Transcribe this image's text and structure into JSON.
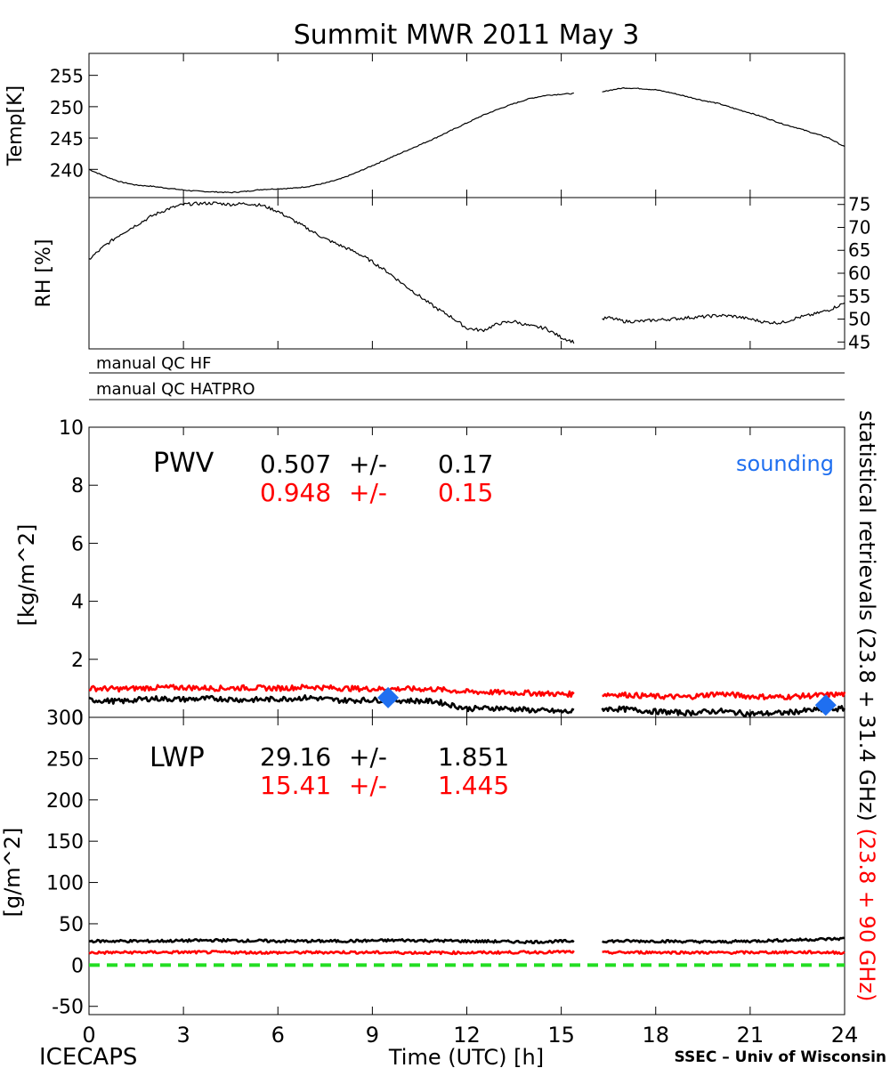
{
  "figure": {
    "title": "Summit MWR 2011 May  3",
    "footer_left": "ICECAPS",
    "footer_right": "SSEC – Univ of Wisconsin",
    "x_label": "Time (UTC) [h]",
    "right_label_black": "statistical retrievals (23.8 + 31.4 GHz)",
    "right_label_red": "(23.8 + 90 GHz)",
    "colors": {
      "black_series": "#000000",
      "red_series": "#ff0000",
      "sounding": "#1f6ff0",
      "zero_line": "#22dd22"
    }
  },
  "chart_data": [
    {
      "type": "line",
      "panel": "temperature",
      "ylabel": "Temp[K]",
      "xlim": [
        0,
        24
      ],
      "ylim": [
        235.5,
        258.5
      ],
      "yticks": [
        240,
        245,
        250,
        255
      ],
      "axis_side": "left",
      "gap_hours": [
        15.4,
        16.3
      ],
      "series": [
        {
          "color": "black",
          "x": [
            0,
            0.5,
            1,
            1.5,
            2,
            2.5,
            3,
            3.5,
            4,
            4.5,
            5,
            5.5,
            6,
            6.5,
            7,
            7.5,
            8,
            8.5,
            9,
            9.5,
            10,
            10.5,
            11,
            11.5,
            12,
            12.5,
            13,
            13.5,
            14,
            14.5,
            15,
            15.4,
            16.3,
            16.5,
            17,
            17.5,
            18,
            18.5,
            19,
            19.5,
            20,
            20.5,
            21,
            21.5,
            22,
            22.5,
            23,
            23.5,
            24
          ],
          "y": [
            240.0,
            238.9,
            238.0,
            237.5,
            237.3,
            237.0,
            236.7,
            236.5,
            236.4,
            236.3,
            236.5,
            236.8,
            236.9,
            237.0,
            237.3,
            237.8,
            238.5,
            239.5,
            240.6,
            241.7,
            242.8,
            243.9,
            245.0,
            246.2,
            247.4,
            248.6,
            249.6,
            250.5,
            251.3,
            251.8,
            252.0,
            252.1,
            252.3,
            252.6,
            253.0,
            252.9,
            252.7,
            252.2,
            251.6,
            251.0,
            250.5,
            249.7,
            249.0,
            248.2,
            247.3,
            246.6,
            245.8,
            245.0,
            243.6
          ]
        }
      ]
    },
    {
      "type": "line",
      "panel": "relative_humidity",
      "ylabel": "RH [%]",
      "xlim": [
        0,
        24
      ],
      "ylim": [
        43.5,
        76.5
      ],
      "yticks": [
        45,
        50,
        55,
        60,
        65,
        70,
        75
      ],
      "axis_side": "right",
      "gap_hours": [
        15.4,
        16.3
      ],
      "series": [
        {
          "color": "black",
          "x": [
            0,
            0.5,
            1,
            1.5,
            2,
            2.5,
            3,
            3.5,
            4,
            4.5,
            5,
            5.5,
            6,
            6.5,
            7,
            7.5,
            8,
            8.5,
            9,
            9.5,
            10,
            10.5,
            11,
            11.5,
            12,
            12.5,
            13,
            13.5,
            14,
            14.5,
            15,
            15.4,
            16.3,
            16.5,
            17,
            17.5,
            18,
            18.5,
            19,
            19.5,
            20,
            20.5,
            21,
            21.5,
            22,
            22.5,
            23,
            23.5,
            24
          ],
          "y": [
            63,
            66,
            68.5,
            70.5,
            72.5,
            74,
            75,
            75.2,
            75.3,
            75,
            75.2,
            74.8,
            73.5,
            71.5,
            69.5,
            67.5,
            66,
            64.5,
            62.5,
            60.2,
            57.5,
            55,
            52.5,
            50.5,
            48,
            47.5,
            49,
            49.5,
            48.5,
            48,
            46,
            45,
            50,
            50.3,
            49.5,
            49.5,
            49.8,
            50,
            50.3,
            50.5,
            50.8,
            50.6,
            50,
            49.3,
            49.2,
            50.3,
            51,
            52,
            53.5
          ]
        }
      ]
    },
    {
      "type": "table",
      "panel": "manual_qc",
      "rows": [
        "manual QC HF",
        "manual QC HATPRO"
      ]
    },
    {
      "type": "line",
      "panel": "PWV",
      "ylabel": "[kg/m^2]",
      "xlim": [
        0,
        24
      ],
      "ylim": [
        0,
        10
      ],
      "yticks": [
        0,
        2,
        4,
        6,
        8,
        10
      ],
      "axis_side": "left",
      "gap_hours": [
        15.4,
        16.3
      ],
      "annotation": "PWV",
      "stats": [
        {
          "color": "black",
          "mean": "0.507",
          "pm": "+/-",
          "std": "0.17"
        },
        {
          "color": "red",
          "mean": "0.948",
          "pm": "+/-",
          "std": "0.15"
        }
      ],
      "legend": [
        "sounding"
      ],
      "series": [
        {
          "color": "red",
          "x": [
            0,
            1,
            2,
            3,
            4,
            5,
            6,
            7,
            8,
            9,
            10,
            11,
            12,
            13,
            14,
            15,
            15.4,
            16.3,
            17,
            18,
            19,
            20,
            21,
            22,
            23,
            24
          ],
          "y": [
            1.0,
            0.98,
            1.02,
            1.03,
            1.0,
            1.02,
            1.0,
            1.05,
            1.0,
            0.98,
            0.98,
            0.97,
            0.88,
            0.86,
            0.84,
            0.8,
            0.8,
            0.8,
            0.78,
            0.72,
            0.7,
            0.82,
            0.72,
            0.7,
            0.75,
            0.8
          ]
        },
        {
          "color": "black",
          "x": [
            0,
            1,
            2,
            3,
            4,
            5,
            6,
            7,
            8,
            9,
            10,
            11,
            12,
            13,
            14,
            15,
            15.4,
            16.3,
            17,
            18,
            19,
            20,
            21,
            22,
            23,
            24
          ],
          "y": [
            0.6,
            0.55,
            0.65,
            0.62,
            0.65,
            0.6,
            0.63,
            0.68,
            0.58,
            0.6,
            0.58,
            0.55,
            0.3,
            0.32,
            0.25,
            0.2,
            0.2,
            0.3,
            0.28,
            0.2,
            0.15,
            0.22,
            0.12,
            0.15,
            0.25,
            0.3
          ]
        },
        {
          "name": "sounding",
          "type": "scatter",
          "marker": "diamond",
          "color": "blue",
          "x": [
            9.5,
            23.4
          ],
          "y": [
            0.68,
            0.42
          ]
        }
      ]
    },
    {
      "type": "line",
      "panel": "LWP",
      "ylabel": "[g/m^2]",
      "xlim": [
        0,
        24
      ],
      "ylim": [
        -60,
        300
      ],
      "yticks": [
        -50,
        0,
        50,
        100,
        150,
        200,
        250,
        300
      ],
      "xticks": [
        0,
        3,
        6,
        9,
        12,
        15,
        18,
        21,
        24
      ],
      "axis_side": "left",
      "gap_hours": [
        15.4,
        16.3
      ],
      "annotation": "LWP",
      "stats": [
        {
          "color": "black",
          "mean": "29.16",
          "pm": "+/-",
          "std": "1.851"
        },
        {
          "color": "red",
          "mean": "15.41",
          "pm": "+/-",
          "std": "1.445"
        }
      ],
      "reference_line": {
        "y": 0,
        "style": "dashed",
        "color": "green"
      },
      "series": [
        {
          "color": "black",
          "x": [
            0,
            2,
            4,
            6,
            8,
            10,
            12,
            14,
            15.4,
            16.3,
            18,
            20,
            22,
            23,
            24
          ],
          "y": [
            29,
            29,
            30,
            29,
            29,
            30,
            29,
            28,
            29,
            29,
            29,
            28,
            30,
            31,
            32
          ]
        },
        {
          "color": "red",
          "x": [
            0,
            2,
            4,
            6,
            8,
            10,
            12,
            14,
            15.4,
            16.3,
            18,
            20,
            22,
            23,
            24
          ],
          "y": [
            15,
            15.5,
            15.5,
            15,
            15.5,
            15,
            15,
            15.5,
            16,
            15,
            15.5,
            15,
            15.5,
            15.5,
            15
          ]
        }
      ]
    }
  ]
}
